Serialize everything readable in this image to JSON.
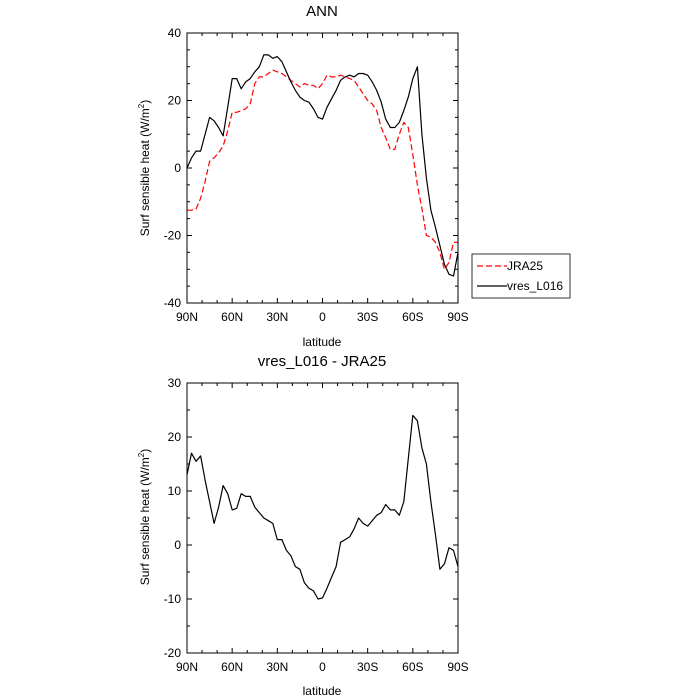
{
  "chart_data": [
    {
      "type": "line",
      "title": "ANN",
      "xlabel": "latitude",
      "ylabel": "Surf sensible heat (W/m²)",
      "ylabel_main": "Surf sensible heat (W/m",
      "ylabel_sup": "2",
      "ylabel_close": ")",
      "xlim": [
        90,
        -90
      ],
      "ylim": [
        -40,
        40
      ],
      "xticks": [
        90,
        60,
        30,
        0,
        -30,
        -60,
        -90
      ],
      "xtick_labels": [
        "90N",
        "60N",
        "30N",
        "0",
        "30S",
        "60S",
        "90S"
      ],
      "yticks": [
        -40,
        -20,
        0,
        20,
        40
      ],
      "ytick_labels": [
        "-40",
        "-20",
        "0",
        "20",
        "40"
      ],
      "legend": {
        "placement": "outside-right-lower"
      },
      "series": [
        {
          "name": "JRA25",
          "color": "#ff0000",
          "dash": "dashed",
          "x": [
            90,
            87,
            84,
            81,
            78,
            75,
            72,
            69,
            66,
            63,
            60,
            57,
            54,
            51,
            48,
            45,
            42,
            39,
            36,
            33,
            30,
            27,
            24,
            21,
            18,
            15,
            12,
            9,
            6,
            3,
            0,
            -3,
            -6,
            -9,
            -12,
            -15,
            -18,
            -21,
            -24,
            -27,
            -30,
            -33,
            -36,
            -39,
            -42,
            -45,
            -48,
            -51,
            -54,
            -57,
            -60,
            -63,
            -66,
            -69,
            -72,
            -75,
            -78,
            -81,
            -84,
            -87,
            -90
          ],
          "y": [
            -12.5,
            -12.5,
            -12.2,
            -9,
            -4,
            2,
            3,
            4.5,
            6.5,
            11,
            16.5,
            16.5,
            17,
            17.5,
            19,
            25,
            27,
            27,
            28,
            29,
            28.5,
            28,
            27,
            26,
            25,
            24,
            25,
            24.5,
            24.5,
            23.5,
            25,
            27.5,
            27,
            27,
            27.5,
            27,
            26.5,
            26,
            24,
            22,
            20,
            19,
            17,
            12,
            9,
            5.5,
            5.5,
            10,
            13.5,
            12,
            4,
            -5,
            -12,
            -20,
            -20.5,
            -22,
            -25,
            -30,
            -28,
            -22,
            -22
          ]
        },
        {
          "name": "vres_L016",
          "color": "#000000",
          "dash": "solid",
          "x": [
            90,
            87,
            84,
            81,
            78,
            75,
            72,
            69,
            66,
            63,
            60,
            57,
            54,
            51,
            48,
            45,
            42,
            39,
            36,
            33,
            30,
            27,
            24,
            21,
            18,
            15,
            12,
            9,
            6,
            3,
            0,
            -3,
            -6,
            -9,
            -12,
            -15,
            -18,
            -21,
            -24,
            -27,
            -30,
            -33,
            -36,
            -39,
            -42,
            -45,
            -48,
            -51,
            -54,
            -57,
            -60,
            -63,
            -66,
            -69,
            -72,
            -75,
            -78,
            -81,
            -84,
            -87,
            -90
          ],
          "y": [
            0,
            3,
            5,
            5,
            10,
            15,
            14,
            12,
            9.5,
            18,
            26.5,
            26.5,
            23.5,
            25.5,
            26.5,
            28.5,
            30,
            33.5,
            33.5,
            32.5,
            33,
            31.5,
            28.5,
            25.5,
            23,
            21,
            20,
            19.5,
            17.5,
            15,
            14.5,
            18,
            20.5,
            23,
            26,
            27,
            27.5,
            27,
            28,
            28,
            27.5,
            25.5,
            23,
            19.5,
            14.5,
            12,
            12,
            13.5,
            17,
            21,
            26.5,
            30,
            10,
            -3,
            -12.5,
            -17.5,
            -23,
            -28.5,
            -31.5,
            -32,
            -25
          ]
        }
      ]
    },
    {
      "type": "line",
      "title": "vres_L016 - JRA25",
      "xlabel": "latitude",
      "ylabel": "Surf sensible heat (W/m²)",
      "ylabel_main": "Surf sensible heat (W/m",
      "ylabel_sup": "2",
      "ylabel_close": ")",
      "xlim": [
        90,
        -90
      ],
      "ylim": [
        -20,
        30
      ],
      "xticks": [
        90,
        60,
        30,
        0,
        -30,
        -60,
        -90
      ],
      "xtick_labels": [
        "90N",
        "60N",
        "30N",
        "0",
        "30S",
        "60S",
        "90S"
      ],
      "yticks": [
        -20,
        -10,
        0,
        10,
        20,
        30
      ],
      "ytick_labels": [
        "-20",
        "-10",
        "0",
        "10",
        "20",
        "30"
      ],
      "series": [
        {
          "name": "vres_L016 - JRA25",
          "color": "#000000",
          "dash": "solid",
          "x": [
            90,
            87,
            84,
            81,
            78,
            75,
            72,
            69,
            66,
            63,
            60,
            57,
            54,
            51,
            48,
            45,
            42,
            39,
            36,
            33,
            30,
            27,
            24,
            21,
            18,
            15,
            12,
            9,
            6,
            3,
            0,
            -3,
            -6,
            -9,
            -12,
            -15,
            -18,
            -21,
            -24,
            -27,
            -30,
            -33,
            -36,
            -39,
            -42,
            -45,
            -48,
            -51,
            -54,
            -57,
            -60,
            -63,
            -66,
            -69,
            -72,
            -75,
            -78,
            -81,
            -84,
            -87,
            -90
          ],
          "y": [
            13,
            17,
            15.5,
            16.5,
            12,
            8,
            4,
            7,
            11,
            9.5,
            6.5,
            6.8,
            9.5,
            9,
            9,
            7,
            6,
            5,
            4.5,
            4,
            1,
            1,
            -1,
            -2,
            -4,
            -4.5,
            -7,
            -8,
            -8.5,
            -10,
            -9.8,
            -8,
            -6,
            -4,
            0.5,
            1,
            1.5,
            3,
            5,
            4,
            3.5,
            4.5,
            5.5,
            6,
            7.5,
            6.5,
            6.5,
            5.5,
            8,
            16,
            24,
            23,
            18,
            15,
            8,
            2,
            -4.5,
            -3.5,
            -0.5,
            -1,
            -4
          ]
        }
      ]
    }
  ]
}
